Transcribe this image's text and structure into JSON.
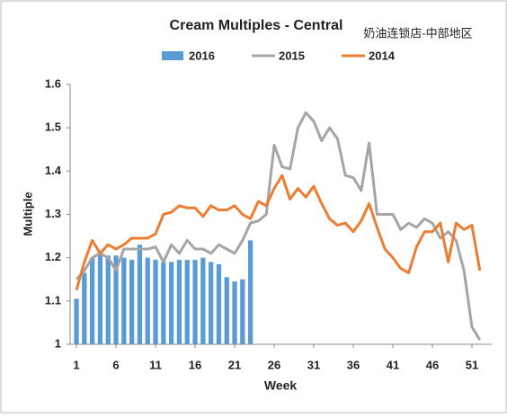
{
  "chart_data": {
    "type": "bar_line",
    "title": "Cream Multiples - Central",
    "annotation": "奶油连锁店-中部地区",
    "x_label": "Week",
    "y_label": "Multiple",
    "x": [
      1,
      2,
      3,
      4,
      5,
      6,
      7,
      8,
      9,
      10,
      11,
      12,
      13,
      14,
      15,
      16,
      17,
      18,
      19,
      20,
      21,
      22,
      23,
      24,
      25,
      26,
      27,
      28,
      29,
      30,
      31,
      32,
      33,
      34,
      35,
      36,
      37,
      38,
      39,
      40,
      41,
      42,
      43,
      44,
      45,
      46,
      47,
      48,
      49,
      50,
      51,
      52
    ],
    "series": [
      {
        "name": "2016",
        "kind": "bar",
        "color": "#5b9bd5",
        "values": [
          1.105,
          1.165,
          1.2,
          1.21,
          1.205,
          1.205,
          1.2,
          1.195,
          1.23,
          1.2,
          1.195,
          1.19,
          1.19,
          1.195,
          1.195,
          1.195,
          1.2,
          1.19,
          1.185,
          1.155,
          1.145,
          1.15,
          1.24,
          null,
          null,
          null,
          null,
          null,
          null,
          null,
          null,
          null,
          null,
          null,
          null,
          null,
          null,
          null,
          null,
          null,
          null,
          null,
          null,
          null,
          null,
          null,
          null,
          null,
          null,
          null,
          null,
          null
        ]
      },
      {
        "name": "2015",
        "kind": "line",
        "color": "#a5a5a5",
        "values": [
          1.15,
          1.17,
          1.2,
          1.21,
          1.2,
          1.17,
          1.22,
          1.22,
          1.22,
          1.22,
          1.225,
          1.19,
          1.23,
          1.21,
          1.24,
          1.22,
          1.22,
          1.21,
          1.23,
          1.22,
          1.21,
          1.24,
          1.28,
          1.285,
          1.3,
          1.46,
          1.41,
          1.405,
          1.5,
          1.535,
          1.515,
          1.47,
          1.5,
          1.475,
          1.39,
          1.385,
          1.355,
          1.465,
          1.3,
          1.3,
          1.3,
          1.265,
          1.28,
          1.27,
          1.29,
          1.28,
          1.245,
          1.26,
          1.24,
          1.17,
          1.04,
          1.01
        ]
      },
      {
        "name": "2014",
        "kind": "line",
        "color": "#ed7d31",
        "values": [
          1.125,
          1.19,
          1.24,
          1.21,
          1.23,
          1.22,
          1.23,
          1.245,
          1.245,
          1.245,
          1.255,
          1.3,
          1.305,
          1.32,
          1.315,
          1.315,
          1.295,
          1.32,
          1.31,
          1.31,
          1.32,
          1.3,
          1.29,
          1.33,
          1.32,
          1.36,
          1.39,
          1.335,
          1.36,
          1.34,
          1.365,
          1.325,
          1.29,
          1.275,
          1.28,
          1.26,
          1.285,
          1.325,
          1.27,
          1.22,
          1.2,
          1.175,
          1.165,
          1.225,
          1.26,
          1.26,
          1.28,
          1.19,
          1.28,
          1.265,
          1.275,
          1.17
        ]
      }
    ],
    "xlim": [
      0.2,
      53.5
    ],
    "xticks": [
      1,
      6,
      11,
      16,
      21,
      26,
      31,
      36,
      41,
      46,
      51
    ],
    "ylim": [
      1,
      1.6
    ],
    "yticks": [
      1,
      1.1,
      1.2,
      1.3,
      1.4,
      1.5,
      1.6
    ],
    "legend": "top"
  }
}
